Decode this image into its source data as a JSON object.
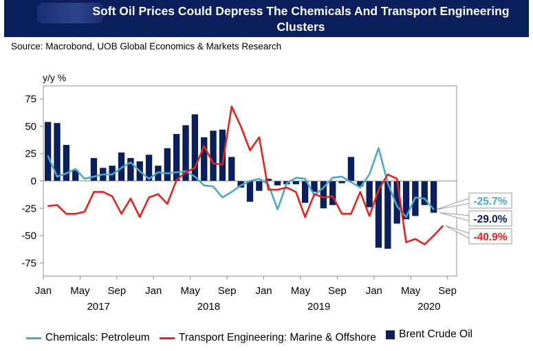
{
  "title": "Soft Oil Prices Could Depress The Chemicals And Transport Engineering Clusters",
  "source": "Source: Macrobond, UOB Global Economics & Markets Research",
  "chart_data": {
    "type": "bar",
    "ylabel": "y/y %",
    "ylim": [
      -87,
      87
    ],
    "yticks": [
      75,
      50,
      25,
      0,
      -25,
      -50,
      -75
    ],
    "x_start": "2017-01",
    "x_end": "2020-09",
    "xtick_months": [
      "Jan",
      "May",
      "Sep",
      "Jan",
      "May",
      "Sep",
      "Jan",
      "May",
      "Sep",
      "Jan",
      "May",
      "Sep"
    ],
    "year_labels": [
      "2017",
      "2018",
      "2019",
      "2020"
    ],
    "legend_position": "bottom",
    "colors": {
      "chemicals": "#4aa8c8",
      "transport": "#e8211c",
      "brent": "#0a1f5c"
    },
    "series": [
      {
        "name": "Chemicals: Petroleum",
        "type": "line",
        "color": "#4aa8c8",
        "values": [
          23,
          4,
          7,
          11,
          2,
          4,
          6,
          6,
          12,
          17,
          9,
          2,
          8,
          7,
          8,
          9,
          4,
          -4,
          -5,
          -15,
          -10,
          -4,
          0,
          2,
          -3,
          -26,
          -2,
          3,
          2,
          -13,
          -6,
          3,
          4,
          -1,
          -6,
          6,
          30,
          -2,
          -23,
          -33,
          -15,
          -16,
          -26
        ]
      },
      {
        "name": "Transport Engineering: Marine & Offshore",
        "type": "line",
        "color": "#e8211c",
        "values": [
          -23,
          -22,
          -30,
          -30,
          -28,
          -10,
          -10,
          -14,
          -30,
          -16,
          -33,
          -15,
          -12,
          -21,
          1,
          8,
          12,
          32,
          16,
          15,
          68,
          50,
          28,
          40,
          -8,
          -8,
          -6,
          -10,
          -33,
          -12,
          -15,
          -14,
          -30,
          -30,
          -10,
          -32,
          -8,
          6,
          2,
          -56,
          -53,
          -58,
          -50,
          -41
        ]
      },
      {
        "name": "Brent Crude Oil",
        "type": "bar",
        "color": "#0a1f5c",
        "values": [
          54,
          53,
          33,
          10,
          0,
          21,
          12,
          14,
          26,
          21,
          18,
          24,
          14,
          30,
          43,
          51,
          61,
          40,
          46,
          47,
          22,
          -6,
          -19,
          -9,
          2,
          -4,
          -3,
          -3,
          -20,
          -10,
          -25,
          -22,
          -2,
          22,
          -5,
          -24,
          -61,
          -62,
          -39,
          -35,
          -32,
          -22,
          -29
        ]
      }
    ],
    "end_labels": [
      {
        "text": "-25.7%",
        "color": "#4aa8c8",
        "value": -25.7
      },
      {
        "text": "-29.0%",
        "color": "#0a1f5c",
        "value": -29.0
      },
      {
        "text": "-40.9%",
        "color": "#e8211c",
        "value": -40.9
      }
    ]
  }
}
